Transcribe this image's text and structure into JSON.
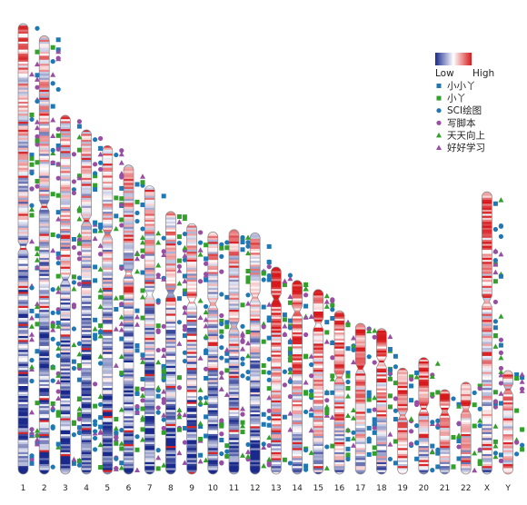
{
  "chart_data": {
    "type": "heatmap",
    "chromosomes": [
      "1",
      "2",
      "3",
      "4",
      "5",
      "6",
      "7",
      "8",
      "9",
      "10",
      "11",
      "12",
      "13",
      "14",
      "15",
      "16",
      "17",
      "18",
      "19",
      "20",
      "21",
      "22",
      "X",
      "Y"
    ],
    "chromosome_lengths": [
      248.9,
      242.2,
      198.3,
      190.2,
      181.5,
      170.8,
      159.3,
      145.1,
      138.4,
      133.8,
      135.1,
      133.3,
      114.4,
      107.0,
      102.0,
      90.3,
      83.3,
      80.4,
      58.6,
      64.4,
      46.7,
      50.8,
      156.0,
      57.2
    ],
    "centromere_positions": [
      123.4,
      93.9,
      90.9,
      50.0,
      48.8,
      59.8,
      60.1,
      45.2,
      43.0,
      39.8,
      53.4,
      35.5,
      17.7,
      17.2,
      19.0,
      36.8,
      25.1,
      18.5,
      26.2,
      28.1,
      12.0,
      15.0,
      60.6,
      10.4
    ],
    "colorscale": {
      "low_label": "Low",
      "high_label": "High",
      "low_color": "#1a2a8c",
      "mid_color": "#ffffff",
      "high_color": "#d7191c"
    },
    "legend": [
      {
        "label": "小小丫",
        "shape": "square",
        "color": "#1f78b4"
      },
      {
        "label": "小丫",
        "shape": "square",
        "color": "#33a02c"
      },
      {
        "label": "SCI绘图",
        "shape": "circle",
        "color": "#1f78b4"
      },
      {
        "label": "写脚本",
        "shape": "circle",
        "color": "#984ea3"
      },
      {
        "label": "天天向上",
        "shape": "triangle",
        "color": "#33a02c"
      },
      {
        "label": "好好学习",
        "shape": "triangle",
        "color": "#984ea3"
      }
    ],
    "legend_position": "top-right"
  }
}
